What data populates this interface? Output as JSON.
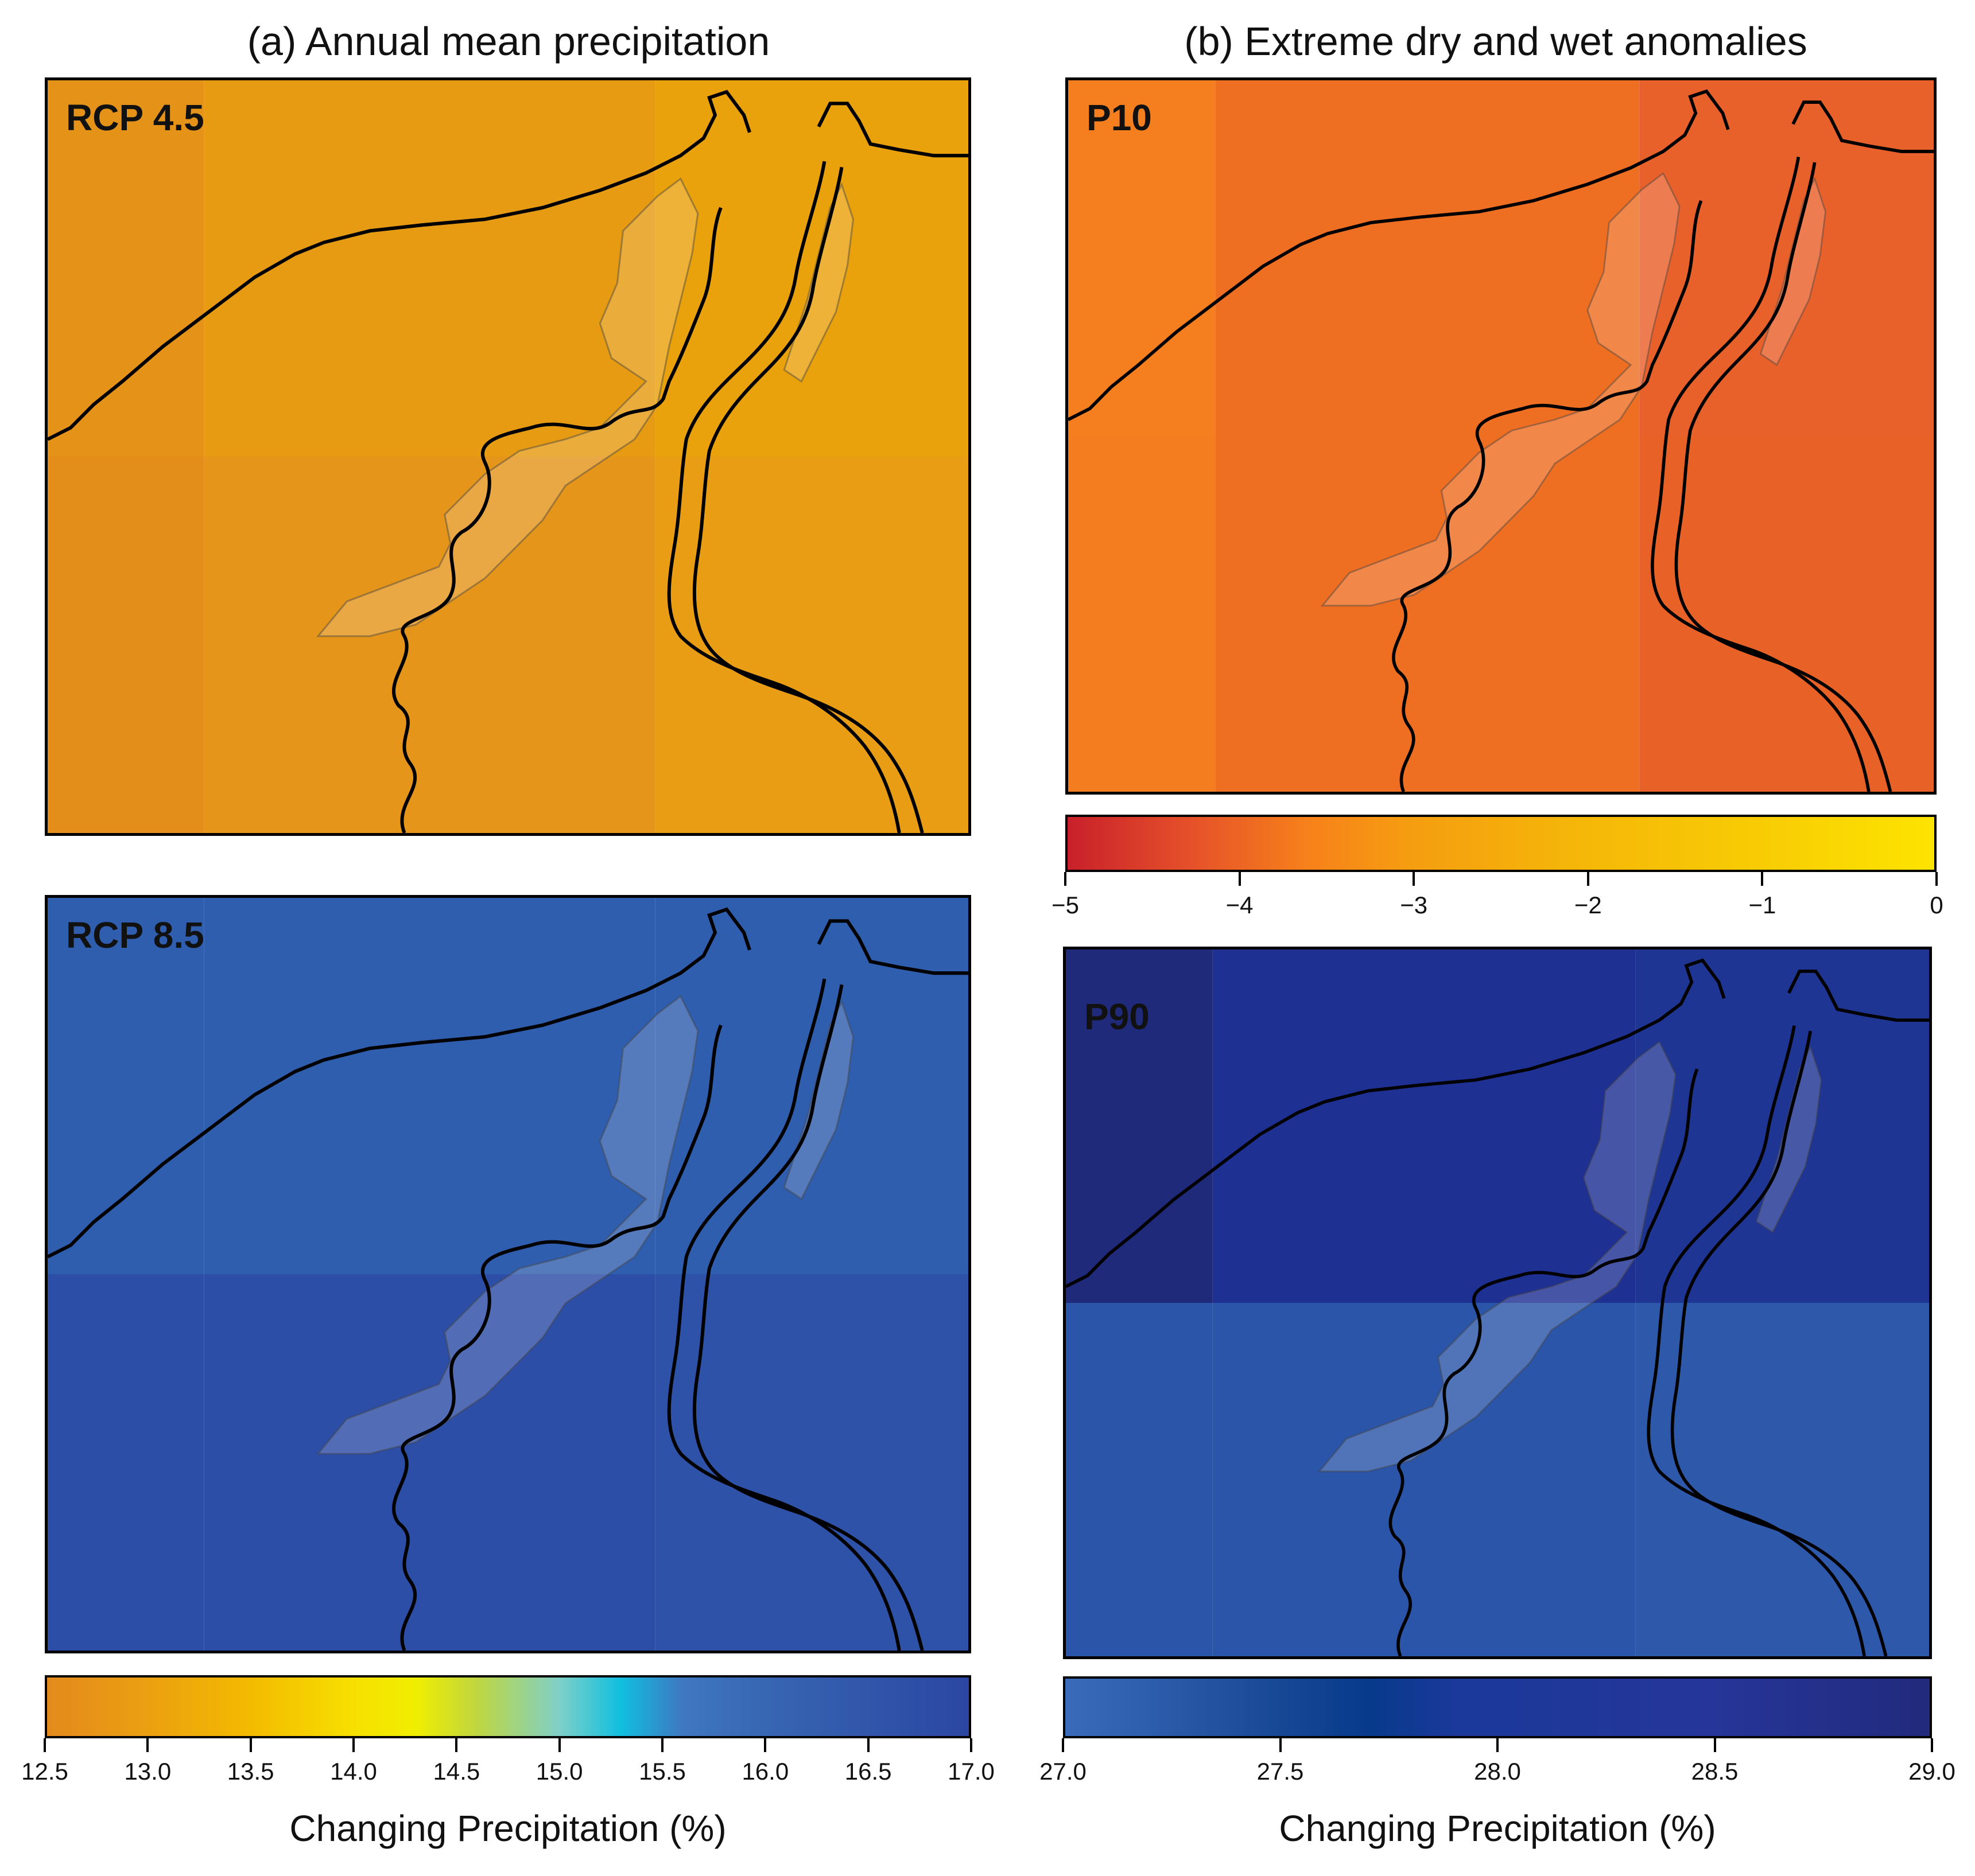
{
  "titles": {
    "left": "(a) Annual mean precipitation",
    "right": "(b) Extreme dry and wet anomalies"
  },
  "panels": {
    "rcp45": {
      "label": "RCP 4.5"
    },
    "rcp85": {
      "label": "RCP 8.5"
    },
    "p10": {
      "label": "P10"
    },
    "p90": {
      "label": "P90"
    }
  },
  "colors": {
    "coast": "#000000",
    "wetland_overlay": "#ffffff"
  },
  "chart_data": [
    {
      "type": "heatmap",
      "panel": "RCP 4.5",
      "grid_rows": 2,
      "grid_cols": 3,
      "cells": [
        [
          "#e49218",
          "#e69b12",
          "#e9a10c"
        ],
        [
          "#e38d1a",
          "#e5951a",
          "#e89d14"
        ]
      ]
    },
    {
      "type": "heatmap",
      "panel": "RCP 8.5",
      "grid_rows": 2,
      "grid_cols": 3,
      "cells": [
        [
          "#305eae",
          "#305eae",
          "#305eae"
        ],
        [
          "#2d4ea6",
          "#2d4ea6",
          "#2e52a8"
        ]
      ]
    },
    {
      "type": "heatmap",
      "panel": "P10",
      "grid_rows": 2,
      "grid_cols": 3,
      "cells": [
        [
          "#f57e1f",
          "#ee6e22",
          "#e9612a"
        ],
        [
          "#f47d1f",
          "#ee6e22",
          "#e86227"
        ]
      ]
    },
    {
      "type": "heatmap",
      "panel": "P90",
      "grid_rows": 2,
      "grid_cols": 3,
      "cells": [
        [
          "#1f2a7a",
          "#1f3093",
          "#1f3593"
        ],
        [
          "#2b55a8",
          "#2b55a8",
          "#2e58aa"
        ]
      ]
    },
    {
      "type": "colorbar",
      "name": "annual-mean",
      "xlabel": "Changing Precipitation (%)",
      "ticks": [
        "12.5",
        "13.0",
        "13.5",
        "14.0",
        "14.5",
        "15.0",
        "15.5",
        "16.0",
        "16.5",
        "17.0"
      ],
      "range": [
        12.5,
        17.0
      ],
      "stops": [
        {
          "v": 12.5,
          "c": "#e38a1d"
        },
        {
          "v": 13.0,
          "c": "#eba010"
        },
        {
          "v": 13.5,
          "c": "#f3bb00"
        },
        {
          "v": 14.0,
          "c": "#f7e000"
        },
        {
          "v": 14.3,
          "c": "#f0ee00"
        },
        {
          "v": 14.6,
          "c": "#bfd640"
        },
        {
          "v": 15.0,
          "c": "#7fd0c8"
        },
        {
          "v": 15.3,
          "c": "#10bfe0"
        },
        {
          "v": 15.6,
          "c": "#3f78c0"
        },
        {
          "v": 16.0,
          "c": "#3766b3"
        },
        {
          "v": 17.0,
          "c": "#2b46a2"
        }
      ]
    },
    {
      "type": "colorbar",
      "name": "p10",
      "xlabel": "",
      "ticks": [
        "−5",
        "−4",
        "−3",
        "−2",
        "−1",
        "0"
      ],
      "range": [
        -5,
        0
      ],
      "stops": [
        {
          "v": -5.0,
          "c": "#c8202a"
        },
        {
          "v": -4.3,
          "c": "#e5502a"
        },
        {
          "v": -3.6,
          "c": "#f7821a"
        },
        {
          "v": -3.0,
          "c": "#f59e10"
        },
        {
          "v": -2.0,
          "c": "#f5b808"
        },
        {
          "v": -1.0,
          "c": "#f8cc04"
        },
        {
          "v": 0.0,
          "c": "#fde400"
        }
      ]
    },
    {
      "type": "colorbar",
      "name": "p90",
      "xlabel": "Changing Precipitation (%)",
      "ticks": [
        "27.0",
        "27.5",
        "28.0",
        "28.5",
        "29.0"
      ],
      "range": [
        27.0,
        29.0
      ],
      "stops": [
        {
          "v": 27.0,
          "c": "#3a6bbb"
        },
        {
          "v": 27.4,
          "c": "#1f4e9c"
        },
        {
          "v": 27.7,
          "c": "#063a8a"
        },
        {
          "v": 27.9,
          "c": "#1a399a"
        },
        {
          "v": 28.5,
          "c": "#263599"
        },
        {
          "v": 29.0,
          "c": "#212a7c"
        }
      ]
    }
  ]
}
